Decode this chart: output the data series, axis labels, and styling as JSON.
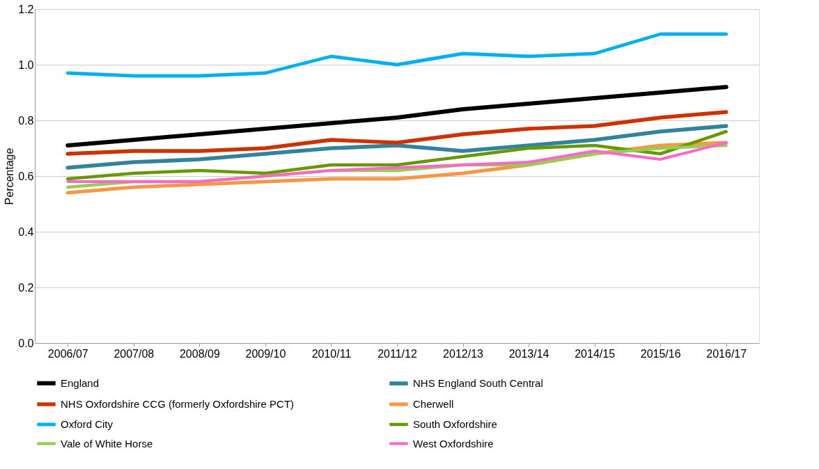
{
  "chart_data": {
    "type": "line",
    "ylabel": "Percentage",
    "categories": [
      "2006/07",
      "2007/08",
      "2008/09",
      "2009/10",
      "2010/11",
      "2011/12",
      "2012/13",
      "2013/14",
      "2014/15",
      "2015/16",
      "2016/17"
    ],
    "ylim": [
      0,
      1.2
    ],
    "yticks": [
      {
        "value": 0,
        "label": "0.0"
      },
      {
        "value": 0.2,
        "label": "0.2"
      },
      {
        "value": 0.4,
        "label": "0.4"
      },
      {
        "value": 0.6,
        "label": "0.6"
      },
      {
        "value": 0.8,
        "label": "0.8"
      },
      {
        "value": 1.0,
        "label": "1.0"
      },
      {
        "value": 1.2,
        "label": "1.2"
      }
    ],
    "grid": "y",
    "legend": "bottom",
    "marker": "none",
    "line_style": "solid",
    "series": [
      {
        "name": "England",
        "color": "#000000",
        "values": [
          0.71,
          0.73,
          0.75,
          0.77,
          0.79,
          0.81,
          0.84,
          0.86,
          0.88,
          0.9,
          0.92
        ]
      },
      {
        "name": "NHS England South Central",
        "color": "#31849b",
        "values": [
          0.63,
          0.65,
          0.66,
          0.68,
          0.7,
          0.71,
          0.69,
          0.71,
          0.73,
          0.76,
          0.78
        ]
      },
      {
        "name": "NHS Oxfordshire CCG  (formerly Oxfordshire PCT)",
        "color": "#cc3300",
        "values": [
          0.68,
          0.69,
          0.69,
          0.7,
          0.73,
          0.72,
          0.75,
          0.77,
          0.78,
          0.81,
          0.83
        ]
      },
      {
        "name": "Cherwell",
        "color": "#f79646",
        "values": [
          0.54,
          0.56,
          0.57,
          0.58,
          0.59,
          0.59,
          0.61,
          0.64,
          0.68,
          0.71,
          0.72
        ]
      },
      {
        "name": "Oxford City",
        "color": "#00b0f0",
        "values": [
          0.97,
          0.96,
          0.96,
          0.97,
          1.03,
          1.0,
          1.04,
          1.03,
          1.04,
          1.11,
          1.11
        ]
      },
      {
        "name": "South Oxfordshire",
        "color": "#669900",
        "values": [
          0.59,
          0.61,
          0.62,
          0.61,
          0.64,
          0.64,
          0.67,
          0.7,
          0.71,
          0.68,
          0.76
        ]
      },
      {
        "name": "Vale of White Horse",
        "color": "#92d050",
        "values": [
          0.56,
          0.58,
          0.58,
          0.6,
          0.62,
          0.62,
          0.64,
          0.64,
          0.68,
          0.7,
          0.71
        ]
      },
      {
        "name": "West Oxfordshire",
        "color": "#ff66cc",
        "values": [
          0.58,
          0.58,
          0.58,
          0.6,
          0.62,
          0.63,
          0.64,
          0.65,
          0.69,
          0.66,
          0.72
        ]
      }
    ]
  }
}
